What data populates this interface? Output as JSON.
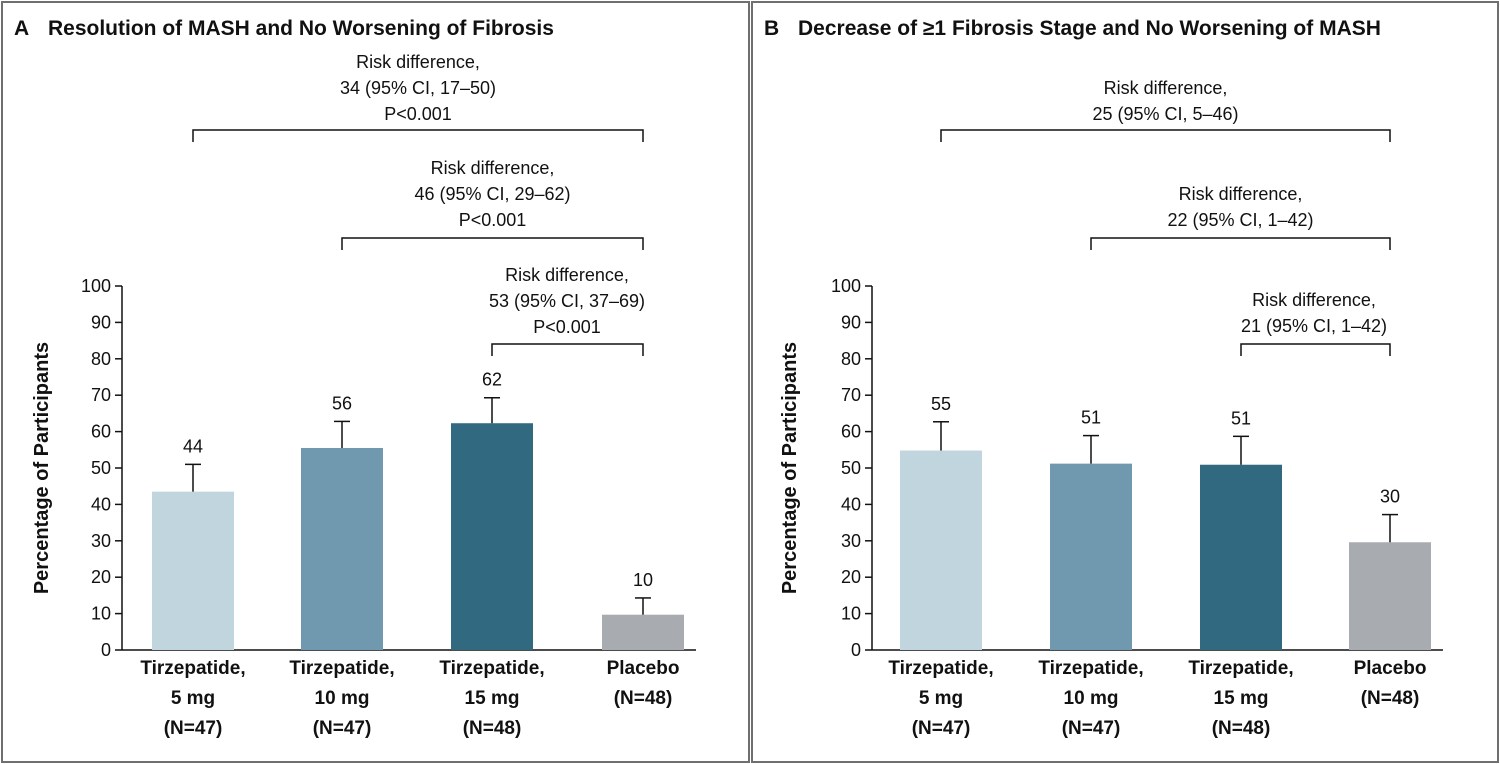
{
  "chart_data": [
    {
      "type": "bar",
      "panel_letter": "A",
      "title": "Resolution of MASH and No Worsening of Fibrosis",
      "ylabel": "Percentage of Participants",
      "ylim": [
        0,
        100
      ],
      "yticks": [
        "0",
        "10",
        "20",
        "30",
        "40",
        "50",
        "60",
        "70",
        "80",
        "90",
        "100"
      ],
      "categories": [
        {
          "lines": [
            "Tirzepatide,",
            "5 mg",
            "(N=47)"
          ],
          "value": 44,
          "bar_value": 43.5,
          "err_upper": 51,
          "value_label": "44",
          "color": "#c0d5de"
        },
        {
          "lines": [
            "Tirzepatide,",
            "10 mg",
            "(N=47)"
          ],
          "value": 56,
          "bar_value": 55.5,
          "err_upper": 62.8,
          "value_label": "56",
          "color": "#7099b0"
        },
        {
          "lines": [
            "Tirzepatide,",
            "15 mg",
            "(N=48)"
          ],
          "value": 62,
          "bar_value": 62.3,
          "err_upper": 69.3,
          "value_label": "62",
          "color": "#316980"
        },
        {
          "lines": [
            "Placebo",
            "(N=48)"
          ],
          "value": 10,
          "bar_value": 9.7,
          "err_upper": 14.3,
          "value_label": "10",
          "color": "#a8abb0"
        }
      ],
      "comparisons": [
        {
          "from": 0,
          "to": 3,
          "lines": [
            "Risk difference,",
            "34 (95% CI, 17–50)",
            "P<0.001"
          ]
        },
        {
          "from": 1,
          "to": 3,
          "lines": [
            "Risk difference,",
            "46 (95% CI, 29–62)",
            "P<0.001"
          ]
        },
        {
          "from": 2,
          "to": 3,
          "lines": [
            "Risk difference,",
            "53 (95% CI, 37–69)",
            "P<0.001"
          ]
        }
      ]
    },
    {
      "type": "bar",
      "panel_letter": "B",
      "title": "Decrease of ≥1 Fibrosis Stage and No Worsening of MASH",
      "ylabel": "Percentage of Participants",
      "ylim": [
        0,
        100
      ],
      "yticks": [
        "0",
        "10",
        "20",
        "30",
        "40",
        "50",
        "60",
        "70",
        "80",
        "90",
        "100"
      ],
      "categories": [
        {
          "lines": [
            "Tirzepatide,",
            "5 mg",
            "(N=47)"
          ],
          "value": 55,
          "bar_value": 54.8,
          "err_upper": 62.7,
          "value_label": "55",
          "color": "#c0d5de"
        },
        {
          "lines": [
            "Tirzepatide,",
            "10 mg",
            "(N=47)"
          ],
          "value": 51,
          "bar_value": 51.2,
          "err_upper": 58.9,
          "value_label": "51",
          "color": "#7099b0"
        },
        {
          "lines": [
            "Tirzepatide,",
            "15 mg",
            "(N=48)"
          ],
          "value": 51,
          "bar_value": 50.9,
          "err_upper": 58.7,
          "value_label": "51",
          "color": "#316980"
        },
        {
          "lines": [
            "Placebo",
            "(N=48)"
          ],
          "value": 30,
          "bar_value": 29.6,
          "err_upper": 37.2,
          "value_label": "30",
          "color": "#a8abb0"
        }
      ],
      "comparisons": [
        {
          "from": 0,
          "to": 3,
          "lines": [
            "Risk difference,",
            "25 (95% CI, 5–46)"
          ]
        },
        {
          "from": 1,
          "to": 3,
          "lines": [
            "Risk difference,",
            "22 (95% CI, 1–42)"
          ]
        },
        {
          "from": 2,
          "to": 3,
          "lines": [
            "Risk difference,",
            "21 (95% CI, 1–42)"
          ]
        }
      ]
    }
  ]
}
